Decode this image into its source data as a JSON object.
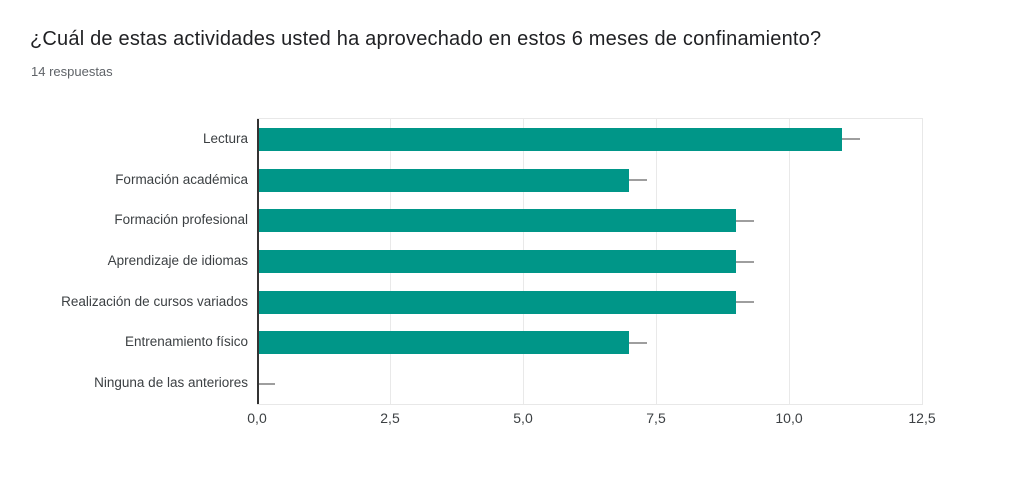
{
  "page": {
    "background": "#ffffff"
  },
  "chart_data": {
    "type": "bar",
    "orientation": "horizontal",
    "title": "¿Cuál de estas actividades usted ha aprovechado en estos 6 meses de confinamiento?",
    "subtitle": "14 respuestas",
    "categories": [
      "Lectura",
      "Formación académica",
      "Formación profesional",
      "Aprendizaje de idiomas",
      "Realización de cursos variados",
      "Entrenamiento físico",
      "Ninguna de las anteriores"
    ],
    "values": [
      11,
      7,
      9,
      9,
      9,
      7,
      0
    ],
    "xlim": [
      0,
      12.5
    ],
    "xticks": [
      {
        "value": 0,
        "label": "0,0"
      },
      {
        "value": 2.5,
        "label": "2,5"
      },
      {
        "value": 5,
        "label": "5,0"
      },
      {
        "value": 7.5,
        "label": "7,5"
      },
      {
        "value": 10,
        "label": "10,0"
      },
      {
        "value": 12.5,
        "label": "12,5"
      }
    ],
    "grid": true,
    "legend": "none",
    "colors": {
      "bar": "#009688",
      "whisker": "#9e9e9e",
      "gridline": "#e9e9e9",
      "axis_line": "#333333",
      "plot_border": "#e8e8e8",
      "title_text": "#202124",
      "subtitle_text": "#5f6368",
      "label_text": "#3c4043",
      "background": "#ffffff"
    }
  }
}
